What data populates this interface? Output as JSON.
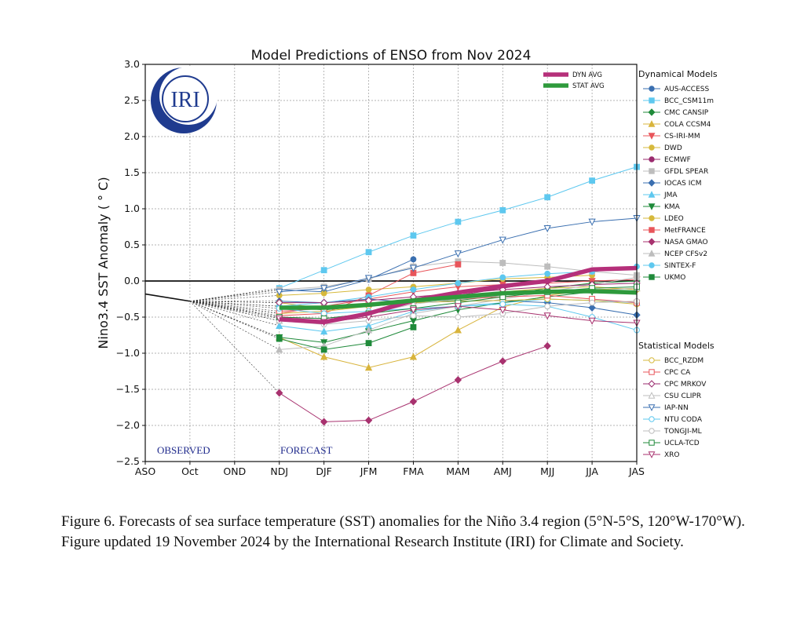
{
  "chart_data": {
    "type": "line",
    "title": "Model Predictions of ENSO from Nov 2024",
    "ylabel": "Nino3.4 SST Anomaly ( ° C)",
    "xlabel": "",
    "categories": [
      "ASO",
      "Oct",
      "OND",
      "NDJ",
      "DJF",
      "JFM",
      "FMA",
      "MAM",
      "AMJ",
      "MJJ",
      "JJA",
      "JAS"
    ],
    "ylim": [
      -2.5,
      3.0
    ],
    "yticks": [
      -2.5,
      -2.0,
      -1.5,
      -1.0,
      -0.5,
      0.0,
      0.5,
      1.0,
      1.5,
      2.0,
      2.5,
      3.0
    ],
    "ytick_labels": [
      "−2.5",
      "−2.0",
      "−1.5",
      "−1.0",
      "−0.5",
      "0.0",
      "0.5",
      "1.0",
      "1.5",
      "2.0",
      "2.5",
      "3.0"
    ],
    "grid": true,
    "observed": {
      "x": [
        "ASO",
        "Oct"
      ],
      "values": [
        -0.18,
        -0.28
      ]
    },
    "observed_label": "OBSERVED",
    "forecast_label": "FORECAST",
    "logo_text": "IRI",
    "averages": [
      {
        "name": "DYN AVG",
        "color": "#b5307a",
        "values": [
          null,
          null,
          null,
          -0.53,
          -0.57,
          -0.45,
          -0.27,
          -0.16,
          -0.07,
          0.0,
          0.16,
          0.18
        ]
      },
      {
        "name": "STAT AVG",
        "color": "#2e9a3c",
        "values": [
          null,
          null,
          null,
          -0.37,
          -0.37,
          -0.33,
          -0.27,
          -0.22,
          -0.17,
          -0.15,
          -0.14,
          -0.16
        ]
      }
    ],
    "dynamical_heading": "Dynamical Models",
    "dynamical_models": [
      {
        "name": "AUS-ACCESS",
        "color": "#3a6fb0",
        "marker": "circle",
        "filled": true,
        "values": [
          null,
          null,
          null,
          -0.12,
          -0.15,
          0.02,
          0.3,
          null,
          null,
          null,
          null,
          null
        ]
      },
      {
        "name": "BCC_CSM11m",
        "color": "#5ec8ef",
        "marker": "square",
        "filled": true,
        "values": [
          null,
          null,
          null,
          -0.1,
          0.15,
          0.4,
          0.63,
          0.82,
          0.98,
          1.16,
          1.39,
          1.58
        ]
      },
      {
        "name": "CMC CANSIP",
        "color": "#1f8a3a",
        "marker": "diamond",
        "filled": true,
        "values": [
          null,
          null,
          null,
          -0.35,
          -0.4,
          -0.35,
          -0.3,
          -0.27,
          -0.2,
          -0.1,
          -0.03,
          0.0
        ]
      },
      {
        "name": "COLA CCSM4",
        "color": "#d8b43c",
        "marker": "triangle-up",
        "filled": true,
        "values": [
          null,
          null,
          null,
          -0.78,
          -1.05,
          -1.2,
          -1.05,
          -0.68,
          -0.36,
          -0.2,
          -0.12,
          -0.1
        ]
      },
      {
        "name": "CS-IRI-MM",
        "color": "#e8555a",
        "marker": "triangle-down",
        "filled": true,
        "values": [
          null,
          null,
          null,
          -0.45,
          -0.35,
          -0.25,
          -0.15,
          -0.08,
          -0.05,
          -0.03,
          0.0,
          0.02
        ]
      },
      {
        "name": "DWD",
        "color": "#d6b93c",
        "marker": "circle",
        "filled": true,
        "values": [
          null,
          null,
          null,
          -0.2,
          -0.17,
          -0.12,
          -0.08,
          -0.03,
          0.03,
          0.05,
          0.08,
          null
        ]
      },
      {
        "name": "ECMWF",
        "color": "#9a2a6e",
        "marker": "circle",
        "filled": true,
        "values": [
          null,
          null,
          null,
          -0.5,
          -0.52,
          -0.45,
          -0.3,
          -0.2,
          -0.1,
          0.0,
          null,
          null
        ]
      },
      {
        "name": "GFDL SPEAR",
        "color": "#bdbdbd",
        "marker": "square",
        "filled": true,
        "values": [
          null,
          null,
          null,
          -0.12,
          -0.08,
          0.03,
          0.2,
          0.27,
          0.25,
          0.2,
          0.13,
          0.08
        ]
      },
      {
        "name": "IOCAS ICM",
        "color": "#3a6fb0",
        "marker": "diamond",
        "filled": true,
        "values": [
          null,
          null,
          null,
          -0.28,
          -0.3,
          -0.25,
          -0.3,
          -0.28,
          -0.27,
          -0.3,
          -0.37,
          -0.47
        ]
      },
      {
        "name": "JMA",
        "color": "#5ec8ef",
        "marker": "triangle-up",
        "filled": true,
        "values": [
          null,
          null,
          null,
          -0.62,
          -0.7,
          -0.62,
          -0.42,
          -0.35,
          -0.3,
          -0.25,
          -0.27,
          -0.3
        ]
      },
      {
        "name": "KMA",
        "color": "#1f8a3a",
        "marker": "triangle-down",
        "filled": true,
        "values": [
          null,
          null,
          null,
          -0.78,
          -0.85,
          -0.7,
          -0.55,
          -0.4,
          -0.3,
          -0.22,
          -0.15,
          null
        ]
      },
      {
        "name": "LDEO",
        "color": "#d6b93c",
        "marker": "circle",
        "filled": true,
        "values": [
          null,
          null,
          null,
          -0.3,
          -0.38,
          -0.35,
          -0.28,
          -0.2,
          -0.15,
          -0.1,
          -0.08,
          -0.12
        ]
      },
      {
        "name": "MetFRANCE",
        "color": "#e8555a",
        "marker": "square",
        "filled": true,
        "values": [
          null,
          null,
          null,
          -0.48,
          -0.45,
          -0.2,
          0.11,
          0.23,
          null,
          null,
          null,
          null
        ]
      },
      {
        "name": "NASA GMAO",
        "color": "#a8326f",
        "marker": "diamond",
        "filled": true,
        "values": [
          null,
          null,
          null,
          -1.55,
          -1.95,
          -1.93,
          -1.67,
          -1.37,
          -1.11,
          -0.9,
          null,
          null
        ]
      },
      {
        "name": "NCEP CFSv2",
        "color": "#bdbdbd",
        "marker": "triangle-up",
        "filled": true,
        "values": [
          null,
          null,
          null,
          -0.95,
          -0.9,
          -0.68,
          -0.45,
          -0.35,
          -0.25,
          -0.15,
          -0.05,
          0.05
        ]
      },
      {
        "name": "SINTEX-F",
        "color": "#5ec8ef",
        "marker": "circle",
        "filled": true,
        "values": [
          null,
          null,
          null,
          -0.35,
          -0.3,
          -0.22,
          -0.12,
          -0.03,
          0.05,
          0.1,
          0.13,
          0.2
        ]
      },
      {
        "name": "UKMO",
        "color": "#1f8a3a",
        "marker": "square",
        "filled": true,
        "values": [
          null,
          null,
          null,
          -0.8,
          -0.95,
          -0.86,
          -0.64,
          null,
          null,
          null,
          null,
          null
        ]
      }
    ],
    "statistical_heading": "Statistical Models",
    "statistical_models": [
      {
        "name": "BCC_RZDM",
        "color": "#d6b93c",
        "marker": "circle",
        "filled": false,
        "values": [
          null,
          null,
          null,
          -0.45,
          -0.42,
          -0.35,
          -0.3,
          -0.28,
          -0.27,
          -0.25,
          -0.27,
          -0.32
        ]
      },
      {
        "name": "CPC CA",
        "color": "#e8555a",
        "marker": "square",
        "filled": false,
        "values": [
          null,
          null,
          null,
          -0.42,
          -0.38,
          -0.32,
          -0.28,
          -0.25,
          -0.22,
          -0.2,
          -0.25,
          -0.3
        ]
      },
      {
        "name": "CPC MRKOV",
        "color": "#9a2a6e",
        "marker": "diamond",
        "filled": false,
        "values": [
          null,
          null,
          null,
          -0.3,
          -0.3,
          -0.27,
          -0.22,
          -0.17,
          -0.12,
          -0.08,
          -0.05,
          -0.03
        ]
      },
      {
        "name": "CSU CLIPR",
        "color": "#bdbdbd",
        "marker": "triangle-up",
        "filled": false,
        "values": [
          null,
          null,
          null,
          -0.55,
          -0.55,
          -0.45,
          -0.32,
          -0.25,
          -0.2,
          -0.15,
          -0.13,
          -0.1
        ]
      },
      {
        "name": "IAP-NN",
        "color": "#3a6fb0",
        "marker": "triangle-down",
        "filled": false,
        "values": [
          null,
          null,
          null,
          -0.15,
          -0.1,
          0.04,
          0.18,
          0.38,
          0.57,
          0.73,
          0.82,
          0.87
        ]
      },
      {
        "name": "NTU CODA",
        "color": "#5ec8ef",
        "marker": "circle",
        "filled": false,
        "values": [
          null,
          null,
          null,
          -0.38,
          -0.45,
          -0.42,
          -0.38,
          -0.35,
          -0.32,
          -0.35,
          -0.5,
          -0.68
        ]
      },
      {
        "name": "TONGJI-ML",
        "color": "#bdbdbd",
        "marker": "circle",
        "filled": false,
        "values": [
          null,
          null,
          null,
          -0.55,
          -0.6,
          -0.55,
          -0.48,
          -0.5,
          -0.45,
          -0.35,
          -0.3,
          -0.28
        ]
      },
      {
        "name": "UCLA-TCD",
        "color": "#1f8a3a",
        "marker": "square",
        "filled": false,
        "values": [
          null,
          null,
          null,
          -0.5,
          -0.52,
          -0.45,
          -0.38,
          -0.3,
          -0.22,
          -0.15,
          -0.1,
          -0.08
        ]
      },
      {
        "name": "XRO",
        "color": "#a8326f",
        "marker": "triangle-down",
        "filled": false,
        "values": [
          null,
          null,
          null,
          -0.52,
          -0.57,
          -0.5,
          -0.4,
          -0.35,
          -0.4,
          -0.48,
          -0.55,
          -0.58
        ]
      }
    ]
  },
  "caption": "Figure 6. Forecasts of sea surface temperature (SST) anomalies for the Niño 3.4 region (5°N-5°S, 120°W-170°W). Figure updated 19 November 2024 by the International Research Institute (IRI) for Climate and Society."
}
